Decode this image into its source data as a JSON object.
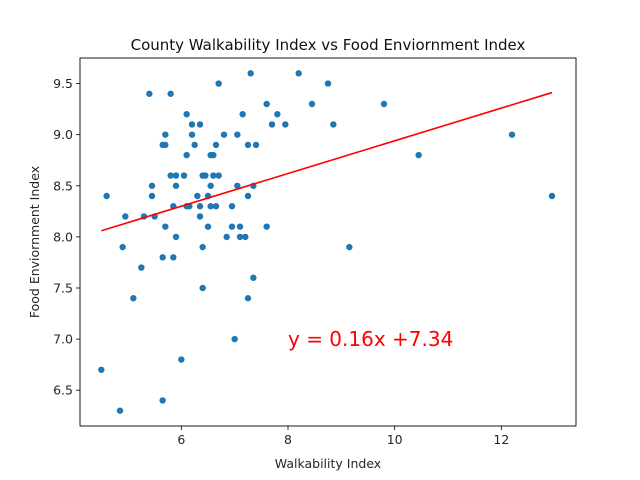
{
  "chart_data": {
    "type": "scatter",
    "title": "County Walkability Index vs Food Enviornment Index",
    "xlabel": "Walkability Index",
    "ylabel": "Food Enviornment Index",
    "xlim": [
      4.1,
      13.4
    ],
    "ylim": [
      6.15,
      9.75
    ],
    "xticks": [
      6,
      8,
      10,
      12
    ],
    "yticks": [
      6.5,
      7.0,
      7.5,
      8.0,
      8.5,
      9.0,
      9.5
    ],
    "grid": false,
    "point_color": "#1f77b4",
    "line_color": "#ff0000",
    "regression": {
      "slope": 0.16,
      "intercept": 7.34,
      "x_range": [
        4.5,
        12.95
      ]
    },
    "annotation": {
      "text": "y = 0.16x +7.34",
      "x": 8.0,
      "y": 7.0
    },
    "points": [
      [
        4.5,
        6.7
      ],
      [
        4.6,
        8.4
      ],
      [
        4.85,
        6.3
      ],
      [
        4.9,
        7.9
      ],
      [
        4.95,
        8.2
      ],
      [
        5.1,
        7.4
      ],
      [
        5.25,
        7.7
      ],
      [
        5.3,
        8.2
      ],
      [
        5.4,
        9.4
      ],
      [
        5.45,
        8.5
      ],
      [
        5.45,
        8.4
      ],
      [
        5.5,
        8.2
      ],
      [
        5.65,
        8.9
      ],
      [
        5.65,
        7.8
      ],
      [
        5.65,
        6.4
      ],
      [
        5.7,
        9.0
      ],
      [
        5.7,
        8.9
      ],
      [
        5.7,
        8.1
      ],
      [
        5.8,
        9.4
      ],
      [
        5.8,
        8.6
      ],
      [
        5.85,
        8.3
      ],
      [
        5.85,
        7.8
      ],
      [
        5.9,
        8.6
      ],
      [
        5.9,
        8.5
      ],
      [
        5.9,
        8.0
      ],
      [
        6.0,
        6.8
      ],
      [
        6.05,
        8.6
      ],
      [
        6.1,
        9.2
      ],
      [
        6.1,
        8.8
      ],
      [
        6.1,
        8.3
      ],
      [
        6.15,
        8.3
      ],
      [
        6.2,
        9.1
      ],
      [
        6.2,
        9.0
      ],
      [
        6.25,
        8.9
      ],
      [
        6.3,
        8.4
      ],
      [
        6.35,
        9.1
      ],
      [
        6.35,
        8.3
      ],
      [
        6.35,
        8.2
      ],
      [
        6.4,
        8.6
      ],
      [
        6.4,
        7.9
      ],
      [
        6.4,
        7.5
      ],
      [
        6.45,
        8.6
      ],
      [
        6.5,
        8.4
      ],
      [
        6.5,
        8.1
      ],
      [
        6.55,
        8.8
      ],
      [
        6.55,
        8.5
      ],
      [
        6.55,
        8.3
      ],
      [
        6.6,
        8.8
      ],
      [
        6.6,
        8.6
      ],
      [
        6.65,
        8.9
      ],
      [
        6.65,
        8.3
      ],
      [
        6.7,
        9.5
      ],
      [
        6.7,
        8.6
      ],
      [
        6.8,
        9.0
      ],
      [
        6.85,
        8.0
      ],
      [
        6.95,
        8.3
      ],
      [
        6.95,
        8.1
      ],
      [
        7.0,
        7.0
      ],
      [
        7.05,
        9.0
      ],
      [
        7.05,
        8.5
      ],
      [
        7.1,
        8.1
      ],
      [
        7.1,
        8.0
      ],
      [
        7.15,
        9.2
      ],
      [
        7.2,
        8.0
      ],
      [
        7.25,
        8.9
      ],
      [
        7.25,
        8.4
      ],
      [
        7.25,
        7.4
      ],
      [
        7.3,
        9.6
      ],
      [
        7.35,
        8.5
      ],
      [
        7.35,
        7.6
      ],
      [
        7.4,
        8.9
      ],
      [
        7.6,
        9.3
      ],
      [
        7.6,
        8.1
      ],
      [
        7.7,
        9.1
      ],
      [
        7.8,
        9.2
      ],
      [
        7.95,
        9.1
      ],
      [
        8.2,
        9.6
      ],
      [
        8.45,
        9.3
      ],
      [
        8.75,
        9.5
      ],
      [
        8.85,
        9.1
      ],
      [
        9.15,
        7.9
      ],
      [
        9.8,
        9.3
      ],
      [
        10.45,
        8.8
      ],
      [
        12.2,
        9.0
      ],
      [
        12.95,
        8.4
      ]
    ]
  }
}
